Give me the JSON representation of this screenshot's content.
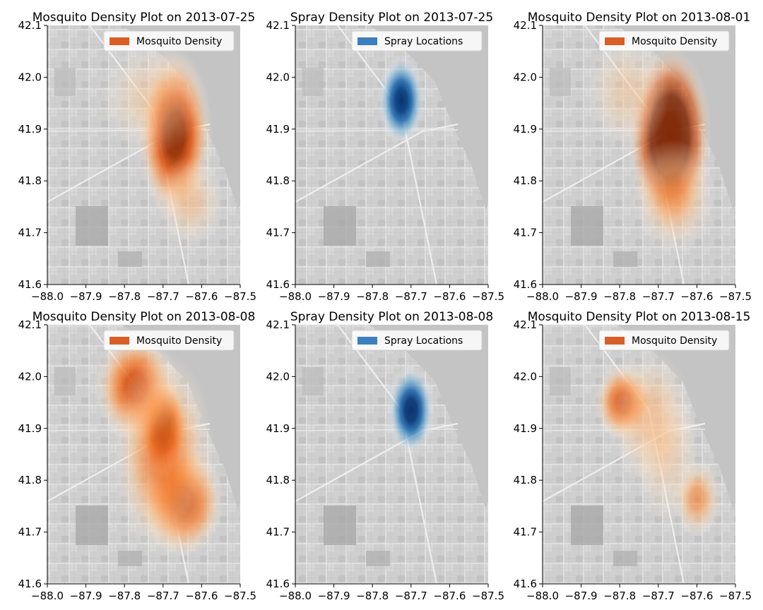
{
  "chart_data": [
    {
      "type": "heatmap",
      "title": "Mosquito Density Plot on 2013-07-25",
      "legend": {
        "label": "Mosquito Density",
        "color": "#d95f27",
        "placement": "top-right"
      },
      "colormap": "Oranges",
      "xlim": [
        -88.0,
        -87.5
      ],
      "ylim": [
        41.6,
        42.1
      ],
      "xticks": [
        "−88.0",
        "−87.9",
        "−87.8",
        "−87.7",
        "−87.6",
        "−87.5"
      ],
      "yticks": [
        "41.6",
        "41.7",
        "41.8",
        "41.9",
        "42.0",
        "42.1"
      ],
      "grid": false,
      "hotspots": [
        {
          "lon": -87.67,
          "lat": 41.89,
          "sx": 0.045,
          "sy": 0.075,
          "w": 0.95
        },
        {
          "lon": -87.63,
          "lat": 41.76,
          "sx": 0.04,
          "sy": 0.04,
          "w": 0.3
        },
        {
          "lon": -87.73,
          "lat": 41.96,
          "sx": 0.06,
          "sy": 0.05,
          "w": 0.25
        }
      ]
    },
    {
      "type": "heatmap",
      "title": "Spray Density Plot on 2013-07-25",
      "legend": {
        "label": "Spray Locations",
        "color": "#3c7fbd",
        "placement": "top-right"
      },
      "colormap": "Blues",
      "xlim": [
        -88.0,
        -87.5
      ],
      "ylim": [
        41.6,
        42.1
      ],
      "xticks": [
        "−88.0",
        "−87.9",
        "−87.8",
        "−87.7",
        "−87.6",
        "−87.5"
      ],
      "yticks": [
        "41.6",
        "41.7",
        "41.8",
        "41.9",
        "42.0",
        "42.1"
      ],
      "grid": false,
      "hotspots": [
        {
          "lon": -87.725,
          "lat": 41.955,
          "sx": 0.028,
          "sy": 0.04,
          "w": 1.0
        }
      ]
    },
    {
      "type": "heatmap",
      "title": "Mosquito Density Plot on 2013-08-01",
      "legend": {
        "label": "Mosquito Density",
        "color": "#d95f27",
        "placement": "top-right"
      },
      "colormap": "Oranges",
      "xlim": [
        -88.0,
        -87.5
      ],
      "ylim": [
        41.6,
        42.1
      ],
      "xticks": [
        "−88.0",
        "−87.9",
        "−87.8",
        "−87.7",
        "−87.6",
        "−87.5"
      ],
      "yticks": [
        "41.6",
        "41.7",
        "41.8",
        "41.9",
        "42.0",
        "42.1"
      ],
      "grid": false,
      "hotspots": [
        {
          "lon": -87.67,
          "lat": 41.885,
          "sx": 0.05,
          "sy": 0.08,
          "w": 1.6
        },
        {
          "lon": -87.66,
          "lat": 41.77,
          "sx": 0.05,
          "sy": 0.05,
          "w": 0.4
        },
        {
          "lon": -87.78,
          "lat": 41.97,
          "sx": 0.05,
          "sy": 0.05,
          "w": 0.25
        }
      ]
    },
    {
      "type": "heatmap",
      "title": "Mosquito Density Plot on 2013-08-08",
      "legend": {
        "label": "Mosquito Density",
        "color": "#d95f27",
        "placement": "top-right"
      },
      "colormap": "Oranges",
      "xlim": [
        -88.0,
        -87.5
      ],
      "ylim": [
        41.6,
        42.1
      ],
      "xticks": [
        "−88.0",
        "−87.9",
        "−87.8",
        "−87.7",
        "−87.6",
        "−87.5"
      ],
      "yticks": [
        "41.6",
        "41.7",
        "41.8",
        "41.9",
        "42.0",
        "42.1"
      ],
      "grid": false,
      "hotspots": [
        {
          "lon": -87.7,
          "lat": 41.9,
          "sx": 0.03,
          "sy": 0.045,
          "w": 1.1
        },
        {
          "lon": -87.77,
          "lat": 41.98,
          "sx": 0.05,
          "sy": 0.05,
          "w": 0.7
        },
        {
          "lon": -87.65,
          "lat": 41.76,
          "sx": 0.05,
          "sy": 0.05,
          "w": 0.75
        },
        {
          "lon": -87.7,
          "lat": 41.85,
          "sx": 0.06,
          "sy": 0.09,
          "w": 0.55
        }
      ]
    },
    {
      "type": "heatmap",
      "title": "Spray Density Plot on 2013-08-08",
      "legend": {
        "label": "Spray Locations",
        "color": "#3c7fbd",
        "placement": "top-right"
      },
      "colormap": "Blues",
      "xlim": [
        -88.0,
        -87.5
      ],
      "ylim": [
        41.6,
        42.1
      ],
      "xticks": [
        "−88.0",
        "−87.9",
        "−87.8",
        "−87.7",
        "−87.6",
        "−87.5"
      ],
      "yticks": [
        "41.6",
        "41.7",
        "41.8",
        "41.9",
        "42.0",
        "42.1"
      ],
      "grid": false,
      "hotspots": [
        {
          "lon": -87.7,
          "lat": 41.935,
          "sx": 0.028,
          "sy": 0.04,
          "w": 1.05
        }
      ]
    },
    {
      "type": "heatmap",
      "title": "Mosquito Density Plot on 2013-08-15",
      "legend": {
        "label": "Mosquito Density",
        "color": "#d95f27",
        "placement": "top-right"
      },
      "colormap": "Oranges",
      "xlim": [
        -88.0,
        -87.5
      ],
      "ylim": [
        41.6,
        42.1
      ],
      "xticks": [
        "−88.0",
        "−87.9",
        "−87.8",
        "−87.7",
        "−87.6",
        "−87.5"
      ],
      "yticks": [
        "41.6",
        "41.7",
        "41.8",
        "41.9",
        "42.0",
        "42.1"
      ],
      "grid": false,
      "hotspots": [
        {
          "lon": -87.79,
          "lat": 41.95,
          "sx": 0.035,
          "sy": 0.035,
          "w": 0.7
        },
        {
          "lon": -87.72,
          "lat": 41.92,
          "sx": 0.05,
          "sy": 0.06,
          "w": 0.35
        },
        {
          "lon": -87.6,
          "lat": 41.765,
          "sx": 0.03,
          "sy": 0.035,
          "w": 0.45
        },
        {
          "lon": -87.68,
          "lat": 41.85,
          "sx": 0.04,
          "sy": 0.06,
          "w": 0.25
        }
      ]
    }
  ]
}
